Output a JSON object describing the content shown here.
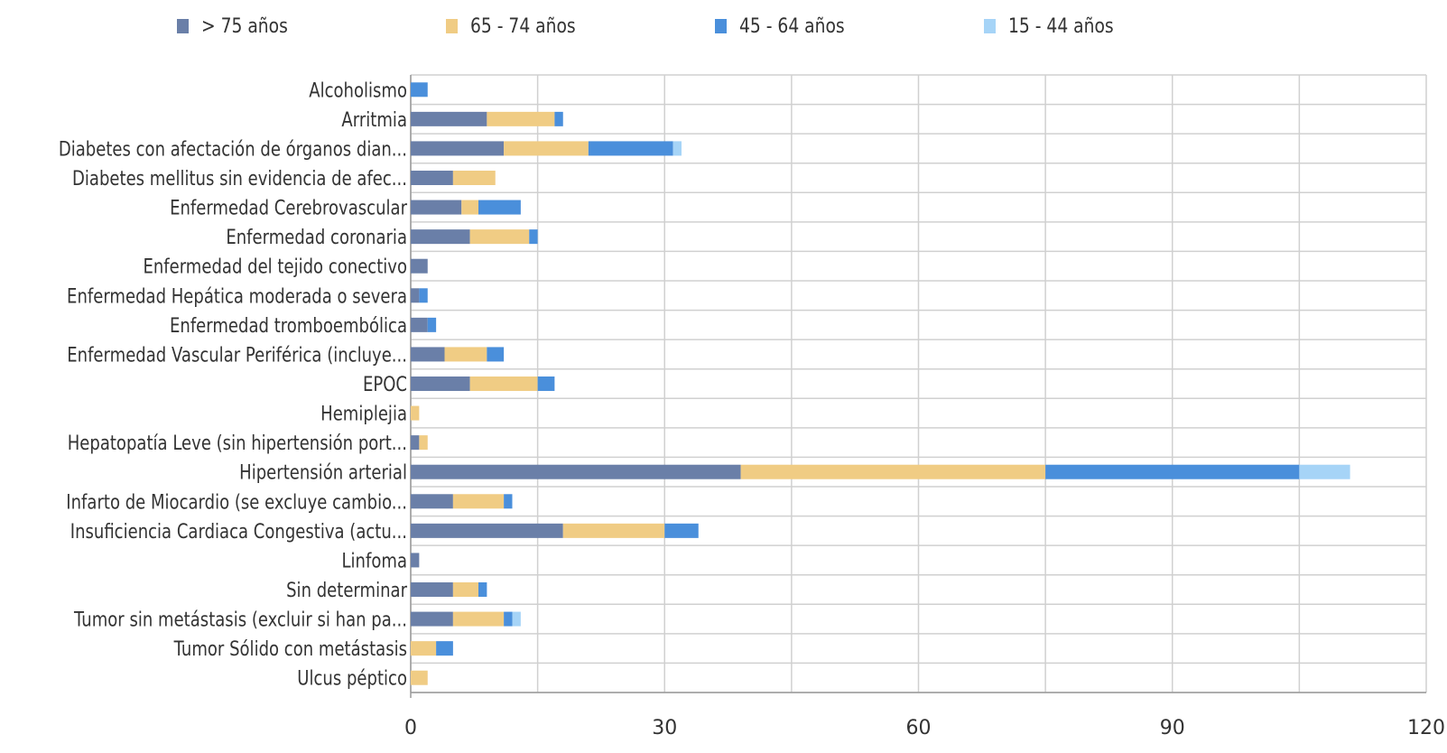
{
  "chart_data": {
    "type": "bar",
    "orientation": "horizontal",
    "stacked": true,
    "categories": [
      "Alcoholismo",
      "Arritmia",
      "Diabetes con afectación de órganos dian...",
      "Diabetes mellitus sin evidencia de afec...",
      "Enfermedad Cerebrovascular",
      "Enfermedad coronaria",
      "Enfermedad del tejido conectivo",
      "Enfermedad Hepática moderada o severa",
      "Enfermedad tromboembólica",
      "Enfermedad Vascular Periférica (incluye...",
      "EPOC",
      "Hemiplejia",
      "Hepatopatía Leve (sin hipertensión port...",
      "Hipertensión arterial",
      "Infarto de Miocardio (se excluye cambio...",
      "Insuficiencia Cardiaca Congestiva (actu...",
      "Linfoma",
      "Sin determinar",
      "Tumor sin metástasis (excluir si han pa...",
      "Tumor Sólido con metástasis",
      "Ulcus péptico"
    ],
    "series": [
      {
        "name": "> 75 años",
        "color": "#6a7fa8",
        "values": [
          0,
          9,
          11,
          5,
          6,
          7,
          2,
          1,
          2,
          4,
          7,
          0,
          1,
          39,
          5,
          18,
          1,
          5,
          5,
          0,
          0
        ]
      },
      {
        "name": "65 - 74 años",
        "color": "#f0cc84",
        "values": [
          0,
          8,
          10,
          5,
          2,
          7,
          0,
          0,
          0,
          5,
          8,
          1,
          1,
          36,
          6,
          12,
          0,
          3,
          6,
          3,
          2
        ]
      },
      {
        "name": "45 - 64 años",
        "color": "#4a8fdb",
        "values": [
          2,
          1,
          10,
          0,
          5,
          1,
          0,
          1,
          1,
          2,
          2,
          0,
          0,
          30,
          1,
          4,
          0,
          1,
          1,
          2,
          0
        ]
      },
      {
        "name": "15 - 44 años",
        "color": "#a6d4f7",
        "values": [
          0,
          0,
          1,
          0,
          0,
          0,
          0,
          0,
          0,
          0,
          0,
          0,
          0,
          6,
          0,
          0,
          0,
          0,
          1,
          0,
          0
        ]
      }
    ],
    "xlim": [
      0,
      120
    ],
    "xticks": [
      "0",
      "30",
      "60",
      "90",
      "120"
    ],
    "grid": true,
    "legend_position": "top",
    "title": "",
    "xlabel": "",
    "ylabel": ""
  }
}
